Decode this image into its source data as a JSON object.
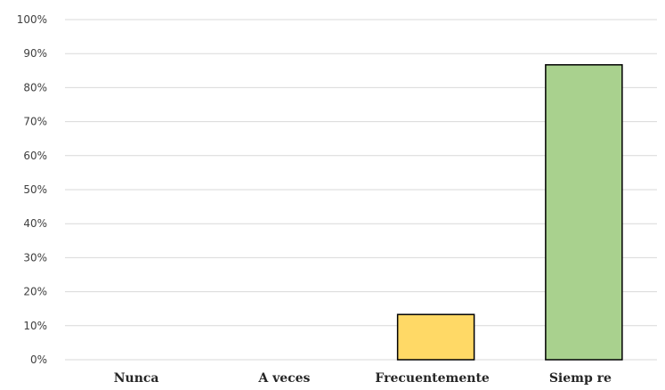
{
  "chart_data": {
    "type": "bar",
    "title": "",
    "xlabel": "",
    "ylabel": "",
    "categories": [
      "Nunca",
      "A veces",
      "Frecuentemente",
      "Siemp re"
    ],
    "values": [
      0,
      0,
      13.3,
      86.7
    ],
    "ylim": [
      0,
      100
    ],
    "yticks": [
      "0%",
      "10%",
      "20%",
      "30%",
      "40%",
      "50%",
      "60%",
      "70%",
      "80%",
      "90%",
      "100%"
    ],
    "grid": true,
    "legend": "none",
    "colors": [
      "#5b9bd5",
      "#ed7d31",
      "#ffd966",
      "#a9d18e"
    ],
    "border_color": "#000000",
    "gridline_color": "#d9d9d9"
  }
}
